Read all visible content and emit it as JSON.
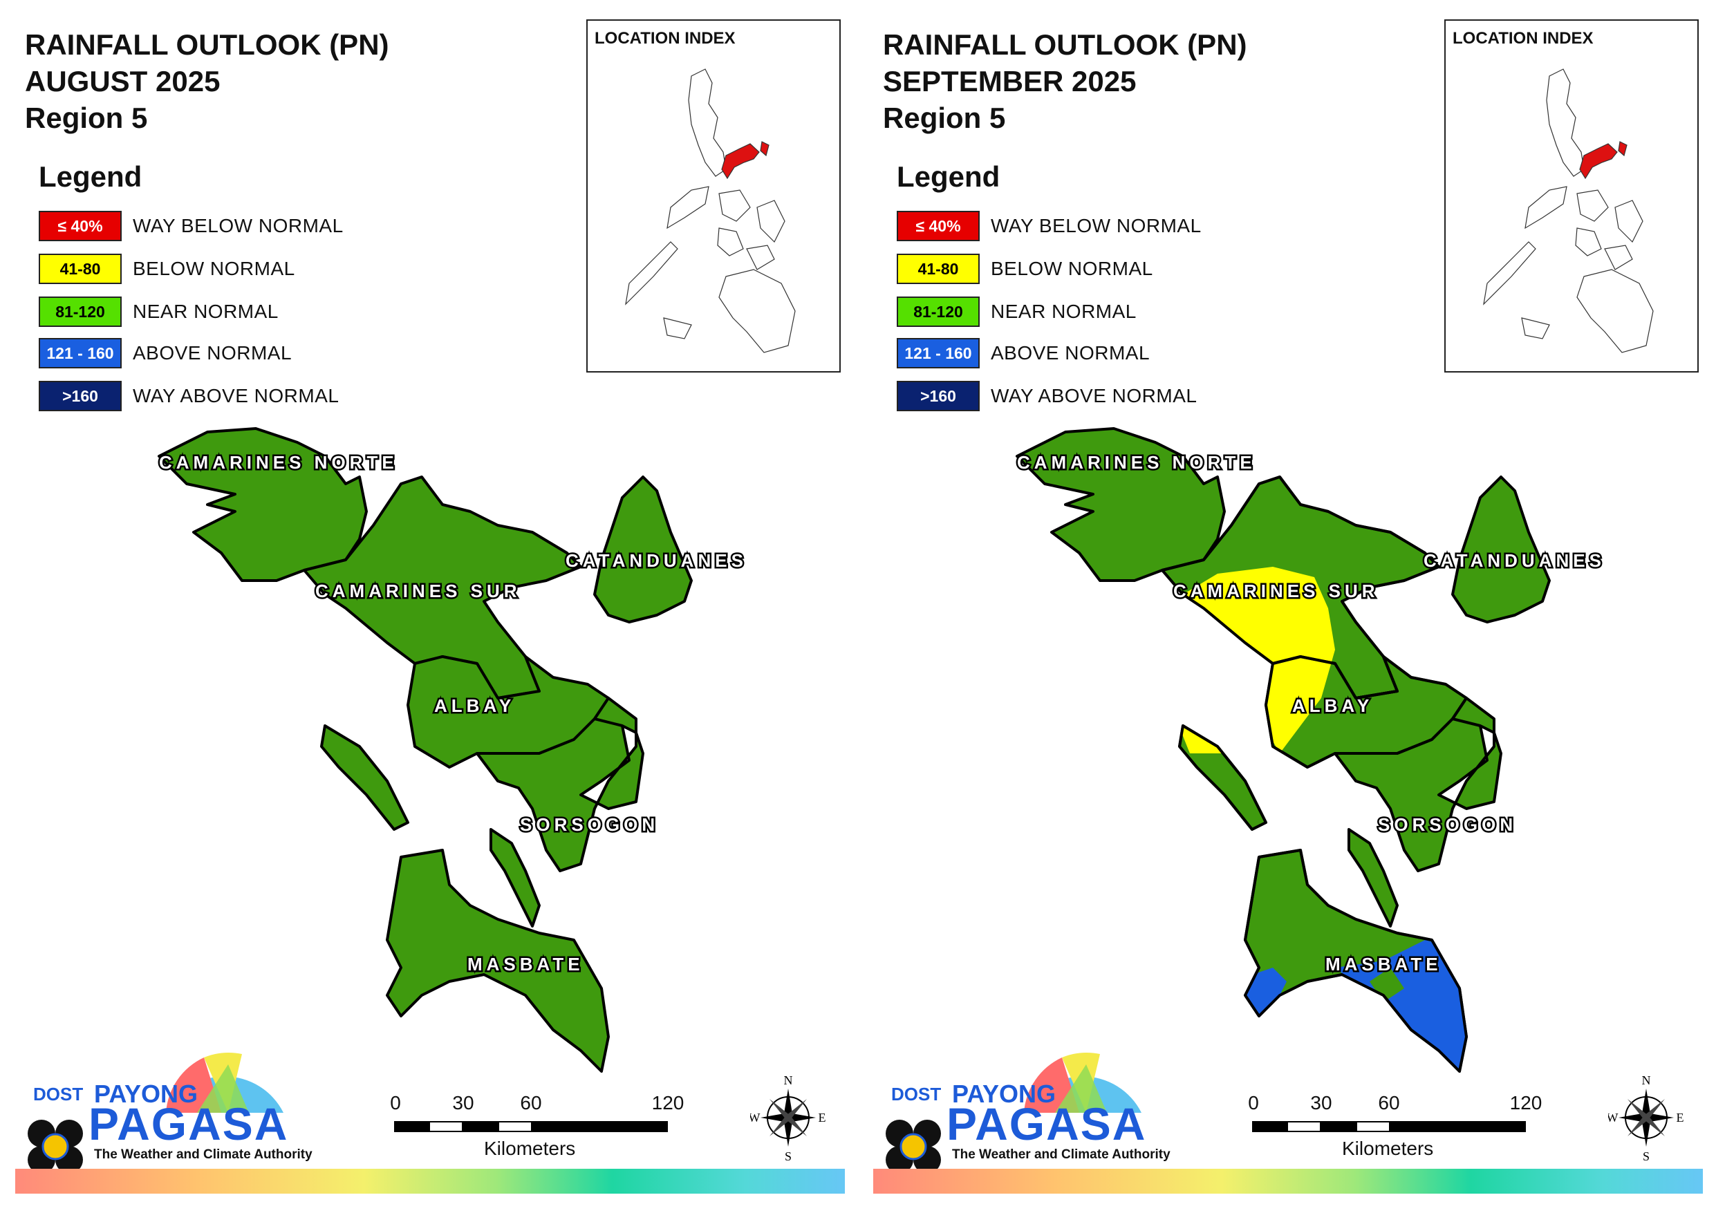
{
  "panels": [
    {
      "title": [
        "RAINFALL OUTLOOK (PN)",
        "AUGUST 2025",
        "Region 5"
      ],
      "legend_heading": "Legend",
      "legend": [
        {
          "code": "≤ 40%",
          "label": "WAY BELOW NORMAL",
          "color": "#e60000",
          "text_color": "#ffffff"
        },
        {
          "code": "41-80",
          "label": "BELOW NORMAL",
          "color": "#ffff00",
          "text_color": "#000000"
        },
        {
          "code": "81-120",
          "label": "NEAR NORMAL",
          "color": "#55e000",
          "text_color": "#000000"
        },
        {
          "code": "121 - 160",
          "label": "ABOVE NORMAL",
          "color": "#1a5fe0",
          "text_color": "#ffffff"
        },
        {
          "code": ">160",
          "label": "WAY ABOVE NORMAL",
          "color": "#0a2270",
          "text_color": "#ffffff"
        }
      ],
      "inset_title": "LOCATION INDEX",
      "provinces": [
        "CAMARINES NORTE",
        "CAMARINES SUR",
        "CATANDUANES",
        "ALBAY",
        "SORSOGON",
        "MASBATE"
      ],
      "province_categories": {
        "CAMARINES NORTE": "NEAR NORMAL",
        "CAMARINES SUR": "NEAR NORMAL",
        "CATANDUANES": "NEAR NORMAL",
        "ALBAY": "NEAR NORMAL",
        "SORSOGON": "NEAR NORMAL",
        "MASBATE": "NEAR NORMAL"
      },
      "overlays": []
    },
    {
      "title": [
        "RAINFALL OUTLOOK (PN)",
        "SEPTEMBER 2025",
        "Region 5"
      ],
      "legend_heading": "Legend",
      "legend": [
        {
          "code": "≤ 40%",
          "label": "WAY BELOW NORMAL",
          "color": "#e60000",
          "text_color": "#ffffff"
        },
        {
          "code": "41-80",
          "label": "BELOW NORMAL",
          "color": "#ffff00",
          "text_color": "#000000"
        },
        {
          "code": "81-120",
          "label": "NEAR NORMAL",
          "color": "#55e000",
          "text_color": "#000000"
        },
        {
          "code": "121 - 160",
          "label": "ABOVE NORMAL",
          "color": "#1a5fe0",
          "text_color": "#ffffff"
        },
        {
          "code": ">160",
          "label": "WAY ABOVE NORMAL",
          "color": "#0a2270",
          "text_color": "#ffffff"
        }
      ],
      "inset_title": "LOCATION INDEX",
      "provinces": [
        "CAMARINES NORTE",
        "CAMARINES SUR",
        "CATANDUANES",
        "ALBAY",
        "SORSOGON",
        "MASBATE"
      ],
      "province_categories": {
        "CAMARINES NORTE": "NEAR NORMAL",
        "CAMARINES SUR": "NEAR NORMAL / BELOW NORMAL",
        "CATANDUANES": "NEAR NORMAL",
        "ALBAY": "NEAR NORMAL / BELOW NORMAL",
        "SORSOGON": "NEAR NORMAL",
        "MASBATE": "NEAR NORMAL / ABOVE NORMAL"
      },
      "overlays": [
        "BELOW NORMAL",
        "ABOVE NORMAL"
      ]
    }
  ],
  "map_fill_color": "#3f9a0e",
  "highlight_color": "#dd1111",
  "scale": {
    "ticks": [
      "0",
      "30",
      "60",
      "120"
    ],
    "unit": "Kilometers"
  },
  "compass": {
    "n": "N",
    "s": "S",
    "e": "E",
    "w": "W"
  },
  "logo": {
    "dost": "DOST",
    "payong": "PAYONG",
    "pagasa": "PAGASA",
    "tagline": "The Weather and Climate Authority"
  }
}
